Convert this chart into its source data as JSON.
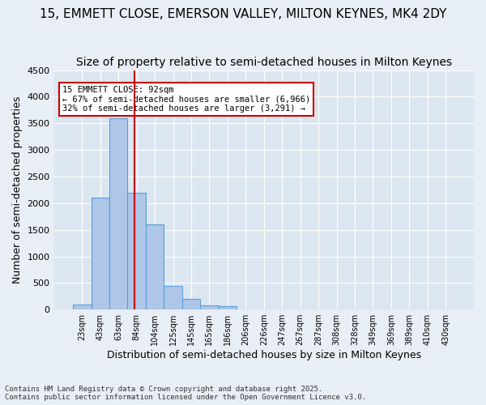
{
  "title1": "15, EMMETT CLOSE, EMERSON VALLEY, MILTON KEYNES, MK4 2DY",
  "title2": "Size of property relative to semi-detached houses in Milton Keynes",
  "xlabel": "Distribution of semi-detached houses by size in Milton Keynes",
  "ylabel": "Number of semi-detached properties",
  "footnote": "Contains HM Land Registry data © Crown copyright and database right 2025.\nContains public sector information licensed under the Open Government Licence v3.0.",
  "bin_labels": [
    "23sqm",
    "43sqm",
    "63sqm",
    "84sqm",
    "104sqm",
    "125sqm",
    "145sqm",
    "165sqm",
    "186sqm",
    "206sqm",
    "226sqm",
    "247sqm",
    "267sqm",
    "287sqm",
    "308sqm",
    "328sqm",
    "349sqm",
    "369sqm",
    "389sqm",
    "410sqm",
    "430sqm"
  ],
  "bar_values": [
    100,
    2100,
    3600,
    2200,
    1600,
    450,
    200,
    75,
    60,
    5,
    0,
    0,
    0,
    0,
    0,
    0,
    0,
    0,
    0,
    0,
    0
  ],
  "bar_color": "#aec6e8",
  "bar_edge_color": "#5a9fd4",
  "property_value": 92,
  "property_label": "15 EMMETT CLOSE: 92sqm",
  "pct_smaller": 67,
  "n_smaller": 6966,
  "pct_larger": 32,
  "n_larger": 3291,
  "vline_color": "#cc0000",
  "annotation_box_color": "#cc0000",
  "ylim": [
    0,
    4500
  ],
  "yticks": [
    0,
    500,
    1000,
    1500,
    2000,
    2500,
    3000,
    3500,
    4000,
    4500
  ],
  "bg_color": "#e8eef5",
  "plot_bg_color": "#dce6f0",
  "grid_color": "#ffffff",
  "title1_fontsize": 11,
  "title2_fontsize": 10,
  "xlabel_fontsize": 9,
  "ylabel_fontsize": 9,
  "vline_x": 2.9
}
